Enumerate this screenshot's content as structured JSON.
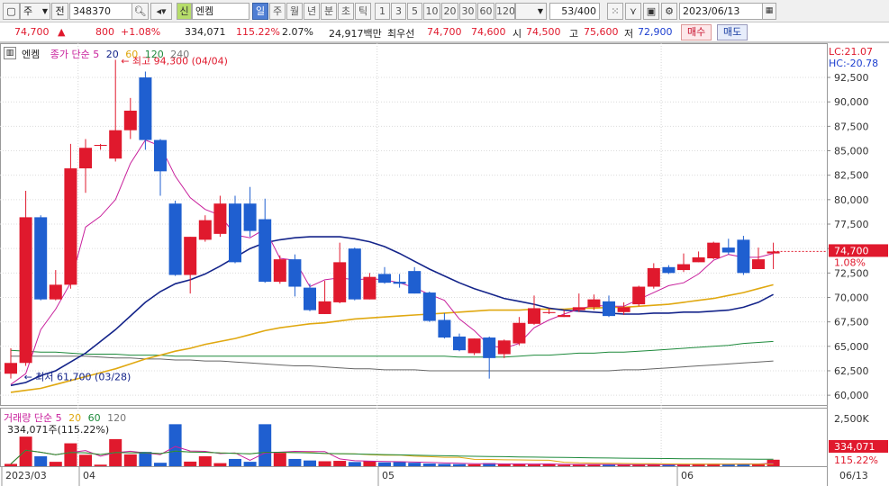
{
  "toolbar": {
    "market": "주",
    "front_btn": "전",
    "code": "348370",
    "indicator": "신",
    "name": "엔켐",
    "periods": [
      "일",
      "주",
      "월",
      "년",
      "분",
      "초",
      "틱"
    ],
    "selected_period": "일",
    "minutes": [
      "1",
      "3",
      "5",
      "10",
      "20",
      "30",
      "60",
      "120"
    ],
    "count": "53/400",
    "date": "2023/06/13"
  },
  "info": {
    "price": "74,700",
    "arrow": "▲",
    "change": "800",
    "change_pct": "+1.08%",
    "volume": "334,071",
    "vol_ratio": "115.22%",
    "turnover": "2.07%",
    "amount": "24,917백만",
    "best_label": "최우선",
    "ask": "74,700",
    "bid": "74,600",
    "open_label": "시",
    "open": "74,500",
    "high_label": "고",
    "high": "75,600",
    "low_label": "저",
    "low": "72,900",
    "buy": "매수",
    "sell": "매도"
  },
  "legend": {
    "name": "엔켐",
    "title": "종가 단순",
    "ma_labels": [
      "5",
      "20",
      "60",
      "120",
      "240"
    ],
    "lc": "LC:21.07",
    "hc": "HC:-20.78",
    "high_note": "최고 94,300 (04/04)",
    "low_note": "최저 61,700 (03/28)",
    "cur_price": "74,700",
    "cur_pct": "1.08%",
    "vol_title": "거래량 단순",
    "vol_mas": [
      "5",
      "20",
      "60",
      "120"
    ],
    "vol_value": "334,071주(115.22%)",
    "vol_tag": "334,071",
    "vol_pct": "115.22%",
    "vol_axis": "2,500K"
  },
  "colors": {
    "up": "#e0192d",
    "down": "#1f5fd0",
    "ma5": "#c8209c",
    "ma20": "#14248a",
    "ma60": "#e0a810",
    "ma120": "#1e8a3c",
    "ma240": "#666"
  },
  "chart_data": {
    "type": "candlestick",
    "ylim": [
      59000,
      96000
    ],
    "yticks": [
      60000,
      62500,
      65000,
      67500,
      70000,
      72500,
      75000,
      77500,
      80000,
      82500,
      85000,
      87500,
      90000,
      92500
    ],
    "xlabels": [
      "2023/03",
      "04",
      "05",
      "06",
      "06/13"
    ],
    "candles": [
      [
        62200,
        63300,
        61700,
        64800
      ],
      [
        63300,
        78200,
        63000,
        80900
      ],
      [
        78200,
        69800,
        69700,
        78400
      ],
      [
        69800,
        71300,
        69700,
        72800
      ],
      [
        71300,
        83200,
        70900,
        85700
      ],
      [
        83200,
        85300,
        80700,
        86200
      ],
      [
        85500,
        85600,
        85100,
        85700
      ],
      [
        84200,
        87100,
        83900,
        94300
      ],
      [
        87100,
        89100,
        86200,
        90400
      ],
      [
        92500,
        86100,
        85100,
        93100
      ],
      [
        86100,
        82900,
        80400,
        86200
      ],
      [
        79600,
        72300,
        72200,
        79900
      ],
      [
        72300,
        76200,
        70400,
        76200
      ],
      [
        75900,
        77900,
        75700,
        78400
      ],
      [
        76500,
        79600,
        76200,
        80400
      ],
      [
        79600,
        73600,
        73500,
        80400
      ],
      [
        79600,
        76800,
        76200,
        81300
      ],
      [
        78000,
        71600,
        71500,
        80100
      ],
      [
        71600,
        73900,
        71400,
        74300
      ],
      [
        73900,
        71100,
        70100,
        74400
      ],
      [
        71000,
        68700,
        68600,
        71400
      ],
      [
        68300,
        69600,
        68300,
        71700
      ],
      [
        69500,
        73600,
        69400,
        75600
      ],
      [
        75000,
        69800,
        69700,
        75100
      ],
      [
        69800,
        72100,
        69800,
        72500
      ],
      [
        72400,
        71500,
        71400,
        73100
      ],
      [
        71600,
        71400,
        71000,
        72400
      ],
      [
        72700,
        70400,
        70400,
        73100
      ],
      [
        70500,
        67600,
        67500,
        70600
      ],
      [
        67700,
        65900,
        65800,
        68400
      ],
      [
        66000,
        64600,
        64500,
        66300
      ],
      [
        64300,
        65800,
        64100,
        65800
      ],
      [
        65900,
        63800,
        61700,
        66000
      ],
      [
        64200,
        65600,
        63800,
        65700
      ],
      [
        65300,
        67400,
        65100,
        68000
      ],
      [
        67300,
        68900,
        67200,
        70200
      ],
      [
        68400,
        68500,
        68300,
        68900
      ],
      [
        68000,
        68200,
        68000,
        68700
      ],
      [
        68700,
        69000,
        68500,
        70400
      ],
      [
        69000,
        69800,
        68700,
        70300
      ],
      [
        69600,
        68100,
        68000,
        70200
      ],
      [
        68500,
        69000,
        68200,
        69500
      ],
      [
        69300,
        71100,
        69100,
        71200
      ],
      [
        71100,
        73000,
        70900,
        73500
      ],
      [
        73100,
        72500,
        72400,
        73300
      ],
      [
        72800,
        73400,
        72600,
        74500
      ],
      [
        73600,
        74100,
        73600,
        74700
      ],
      [
        74000,
        75600,
        73900,
        75700
      ],
      [
        75100,
        74600,
        74400,
        76000
      ],
      [
        75900,
        72500,
        72300,
        76300
      ],
      [
        72900,
        73900,
        72900,
        75100
      ],
      [
        74500,
        74700,
        72900,
        75600
      ]
    ],
    "volumes": [
      120,
      1550,
      520,
      230,
      1200,
      600,
      80,
      1420,
      620,
      750,
      180,
      2200,
      240,
      520,
      160,
      380,
      230,
      2200,
      700,
      380,
      300,
      260,
      280,
      220,
      260,
      200,
      220,
      180,
      140,
      120,
      110,
      100,
      160,
      110,
      100,
      90,
      120,
      70,
      90,
      100,
      80,
      80,
      90,
      100,
      80,
      100,
      130,
      130,
      110,
      120,
      110,
      340
    ],
    "ma5": [
      61100,
      62200,
      66700,
      68800,
      71500,
      77200,
      78300,
      80000,
      83700,
      86100,
      85500,
      82400,
      80200,
      79000,
      78400,
      76400,
      76100,
      77000,
      74000,
      73800,
      71100,
      71800,
      72000,
      71800,
      71900,
      71800,
      71500,
      71000,
      70300,
      69700,
      67800,
      66600,
      65100,
      64800,
      65300,
      66900,
      67700,
      68300,
      68800,
      69200,
      69100,
      69100,
      69800,
      70500,
      71200,
      71500,
      72400,
      73800,
      74400,
      74100,
      74100,
      74500
    ],
    "ma20": [
      61000,
      61300,
      62000,
      62500,
      63400,
      64300,
      65500,
      66700,
      68100,
      69500,
      70600,
      71400,
      71800,
      72400,
      73200,
      74100,
      75000,
      75600,
      75900,
      76100,
      76200,
      76200,
      76200,
      76000,
      75700,
      75200,
      74500,
      73700,
      72900,
      72200,
      71500,
      70900,
      70400,
      69900,
      69600,
      69300,
      68900,
      68700,
      68600,
      68500,
      68400,
      68300,
      68300,
      68400,
      68400,
      68500,
      68500,
      68600,
      68700,
      69000,
      69500,
      70300
    ],
    "ma60": [
      60300,
      60500,
      60700,
      61100,
      61500,
      61900,
      62300,
      62700,
      63200,
      63700,
      64100,
      64500,
      64800,
      65200,
      65500,
      65800,
      66200,
      66600,
      66900,
      67100,
      67300,
      67400,
      67600,
      67800,
      67900,
      68000,
      68100,
      68200,
      68300,
      68400,
      68500,
      68600,
      68700,
      68700,
      68700,
      68800,
      68800,
      68800,
      68900,
      68900,
      69000,
      69000,
      69100,
      69200,
      69300,
      69500,
      69700,
      69900,
      70200,
      70500,
      70900,
      71300
    ],
    "ma120": [
      64600,
      64500,
      64400,
      64400,
      64300,
      64200,
      64200,
      64200,
      64100,
      64100,
      64100,
      64000,
      64000,
      64000,
      64000,
      64000,
      64000,
      64000,
      64000,
      64000,
      64000,
      64000,
      64000,
      64000,
      64000,
      64000,
      64000,
      64000,
      64000,
      64000,
      63900,
      63900,
      63900,
      63900,
      64000,
      64100,
      64100,
      64200,
      64300,
      64300,
      64400,
      64400,
      64500,
      64600,
      64700,
      64800,
      64900,
      65000,
      65100,
      65300,
      65400,
      65500
    ],
    "ma240": [
      64000,
      64000,
      64000,
      64000,
      64000,
      64000,
      63900,
      63800,
      63800,
      63700,
      63700,
      63600,
      63600,
      63500,
      63500,
      63400,
      63300,
      63200,
      63100,
      63000,
      63000,
      62900,
      62800,
      62700,
      62700,
      62600,
      62600,
      62600,
      62500,
      62500,
      62500,
      62500,
      62500,
      62500,
      62500,
      62500,
      62500,
      62500,
      62500,
      62500,
      62500,
      62600,
      62600,
      62700,
      62800,
      62900,
      63000,
      63100,
      63200,
      63300,
      63400,
      63500
    ]
  }
}
